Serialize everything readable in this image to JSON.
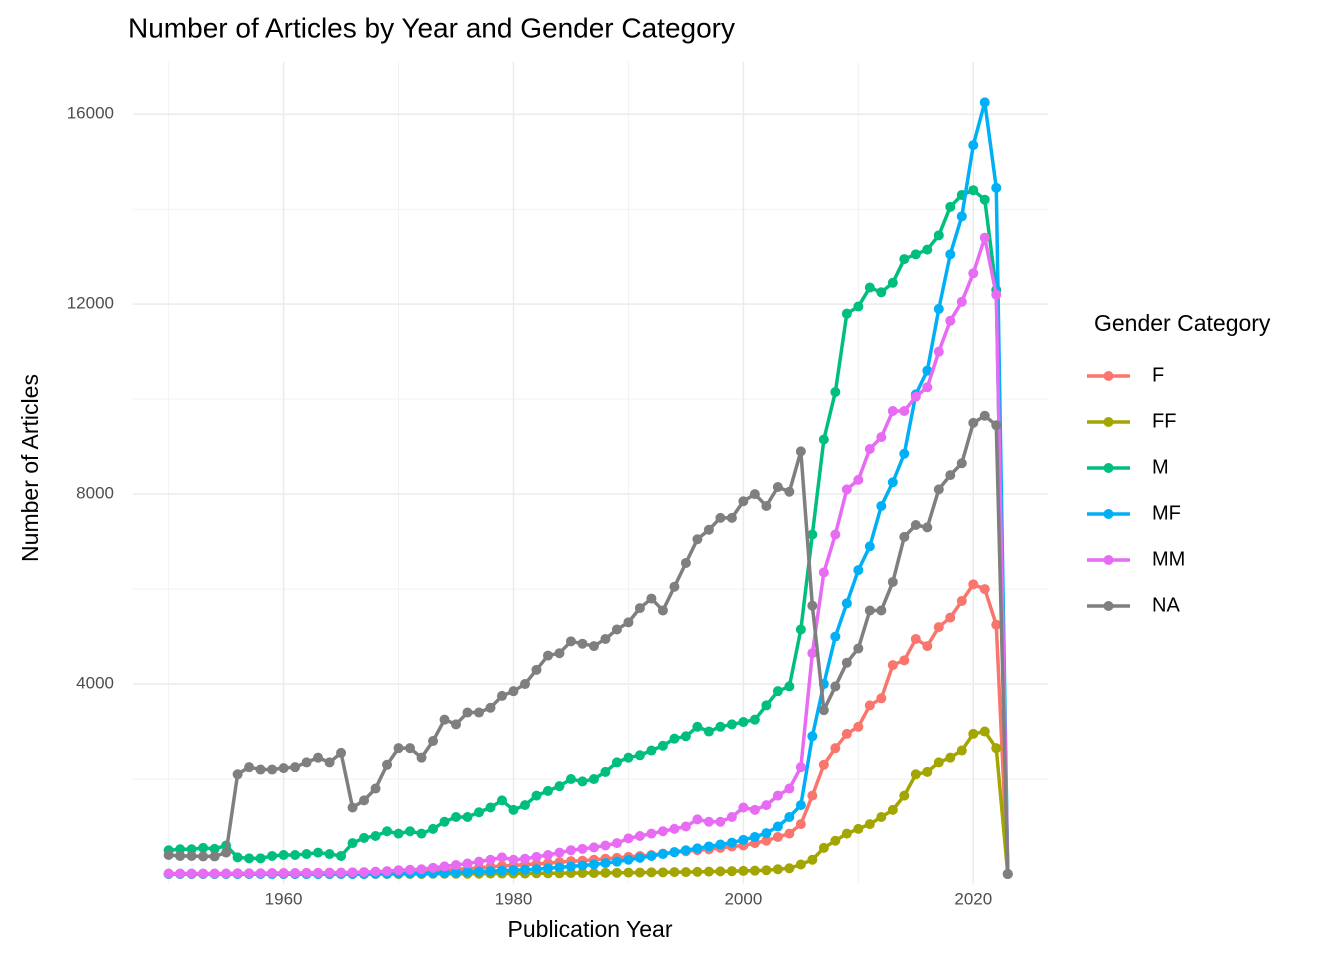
{
  "chart_data": {
    "type": "line",
    "title": "Number of Articles by Year and Gender Category",
    "x_label": "Publication Year",
    "y_label": "Number of Articles",
    "legend_title": "Gender Category",
    "x": [
      1950,
      1951,
      1952,
      1953,
      1954,
      1955,
      1956,
      1957,
      1958,
      1959,
      1960,
      1961,
      1962,
      1963,
      1964,
      1965,
      1966,
      1967,
      1968,
      1969,
      1970,
      1971,
      1972,
      1973,
      1974,
      1975,
      1976,
      1977,
      1978,
      1979,
      1980,
      1981,
      1982,
      1983,
      1984,
      1985,
      1986,
      1987,
      1988,
      1989,
      1990,
      1991,
      1992,
      1993,
      1994,
      1995,
      1996,
      1997,
      1998,
      1999,
      2000,
      2001,
      2002,
      2003,
      2004,
      2005,
      2006,
      2007,
      2008,
      2009,
      2010,
      2011,
      2012,
      2013,
      2014,
      2015,
      2016,
      2017,
      2018,
      2019,
      2020,
      2021,
      2022,
      2023
    ],
    "series": [
      {
        "name": "F",
        "color": "#F8766D",
        "values": [
          5,
          5,
          5,
          5,
          5,
          5,
          10,
          10,
          10,
          15,
          15,
          15,
          20,
          20,
          25,
          25,
          30,
          35,
          40,
          50,
          60,
          70,
          70,
          80,
          90,
          100,
          110,
          130,
          150,
          170,
          180,
          200,
          210,
          230,
          250,
          270,
          280,
          300,
          320,
          340,
          360,
          380,
          400,
          430,
          460,
          480,
          500,
          520,
          550,
          580,
          600,
          650,
          700,
          780,
          850,
          1050,
          1650,
          2300,
          2650,
          2950,
          3100,
          3550,
          3700,
          4400,
          4500,
          4950,
          4800,
          5200,
          5400,
          5750,
          6100,
          6000,
          5250,
          0
        ]
      },
      {
        "name": "FF",
        "color": "#A3A500",
        "values": [
          0,
          0,
          0,
          0,
          0,
          0,
          0,
          0,
          0,
          0,
          0,
          0,
          0,
          0,
          0,
          0,
          0,
          0,
          0,
          0,
          0,
          0,
          0,
          5,
          5,
          5,
          5,
          5,
          10,
          10,
          10,
          10,
          15,
          15,
          15,
          20,
          20,
          20,
          25,
          25,
          30,
          30,
          35,
          35,
          40,
          40,
          45,
          50,
          55,
          60,
          65,
          70,
          80,
          100,
          120,
          200,
          300,
          550,
          700,
          850,
          950,
          1050,
          1200,
          1350,
          1650,
          2100,
          2150,
          2350,
          2450,
          2600,
          2950,
          3000,
          2650,
          0
        ]
      },
      {
        "name": "M",
        "color": "#00BF7D",
        "values": [
          500,
          520,
          520,
          550,
          530,
          600,
          350,
          330,
          330,
          380,
          400,
          400,
          420,
          450,
          420,
          380,
          650,
          760,
          800,
          900,
          850,
          900,
          850,
          950,
          1100,
          1200,
          1200,
          1300,
          1400,
          1550,
          1350,
          1450,
          1650,
          1750,
          1850,
          2000,
          1950,
          2000,
          2150,
          2350,
          2450,
          2500,
          2600,
          2700,
          2850,
          2900,
          3100,
          3000,
          3100,
          3150,
          3200,
          3250,
          3550,
          3850,
          3950,
          5150,
          7150,
          9150,
          10150,
          11800,
          11950,
          12350,
          12250,
          12450,
          12950,
          13050,
          13150,
          13450,
          14050,
          14300,
          14400,
          14200,
          12300,
          0
        ]
      },
      {
        "name": "MF",
        "color": "#00B0F6",
        "values": [
          0,
          0,
          0,
          0,
          0,
          0,
          0,
          0,
          0,
          0,
          0,
          0,
          0,
          0,
          0,
          0,
          0,
          0,
          5,
          5,
          10,
          10,
          15,
          15,
          20,
          30,
          40,
          50,
          60,
          70,
          80,
          90,
          100,
          120,
          140,
          160,
          180,
          200,
          230,
          260,
          300,
          340,
          380,
          420,
          460,
          500,
          540,
          580,
          620,
          660,
          720,
          780,
          860,
          1000,
          1200,
          1450,
          2900,
          4000,
          5000,
          5700,
          6400,
          6900,
          7750,
          8250,
          8850,
          10100,
          10600,
          11900,
          13050,
          13850,
          15350,
          16250,
          14450,
          0
        ]
      },
      {
        "name": "MM",
        "color": "#E76BF3",
        "values": [
          10,
          10,
          10,
          10,
          10,
          10,
          15,
          15,
          15,
          20,
          20,
          20,
          25,
          25,
          30,
          30,
          35,
          40,
          50,
          60,
          80,
          90,
          100,
          130,
          160,
          190,
          220,
          260,
          300,
          350,
          300,
          320,
          360,
          400,
          450,
          500,
          530,
          560,
          600,
          650,
          750,
          800,
          850,
          900,
          950,
          1000,
          1150,
          1100,
          1100,
          1200,
          1400,
          1350,
          1450,
          1650,
          1800,
          2250,
          4650,
          6350,
          7150,
          8100,
          8300,
          8950,
          9200,
          9750,
          9750,
          10050,
          10250,
          11000,
          11650,
          12050,
          12650,
          13400,
          12200,
          0
        ]
      },
      {
        "name": "NA",
        "color": "#7F7F7F",
        "values": [
          400,
          380,
          380,
          370,
          370,
          450,
          2100,
          2250,
          2200,
          2200,
          2230,
          2250,
          2350,
          2450,
          2350,
          2550,
          1400,
          1550,
          1800,
          2300,
          2650,
          2650,
          2450,
          2800,
          3250,
          3150,
          3400,
          3400,
          3500,
          3750,
          3850,
          4000,
          4300,
          4600,
          4650,
          4900,
          4850,
          4800,
          4950,
          5150,
          5300,
          5600,
          5800,
          5550,
          6050,
          6550,
          7050,
          7250,
          7500,
          7500,
          7850,
          8000,
          7750,
          8150,
          8050,
          8900,
          5650,
          3450,
          3950,
          4450,
          4750,
          5550,
          5550,
          6150,
          7100,
          7350,
          7300,
          8100,
          8400,
          8650,
          9500,
          9650,
          9450,
          0
        ]
      }
    ],
    "xlim": [
      1946.9,
      2026.5
    ],
    "ylim": [
      -200,
      17100
    ],
    "xticks": [
      1960,
      1980,
      2000,
      2020
    ],
    "yticks": [
      4000,
      8000,
      12000,
      16000
    ],
    "minor_xticks": [
      1950,
      1970,
      1990,
      2010
    ],
    "minor_yticks": [
      2000,
      6000,
      10000,
      14000
    ],
    "grid": true,
    "legend": "right"
  }
}
